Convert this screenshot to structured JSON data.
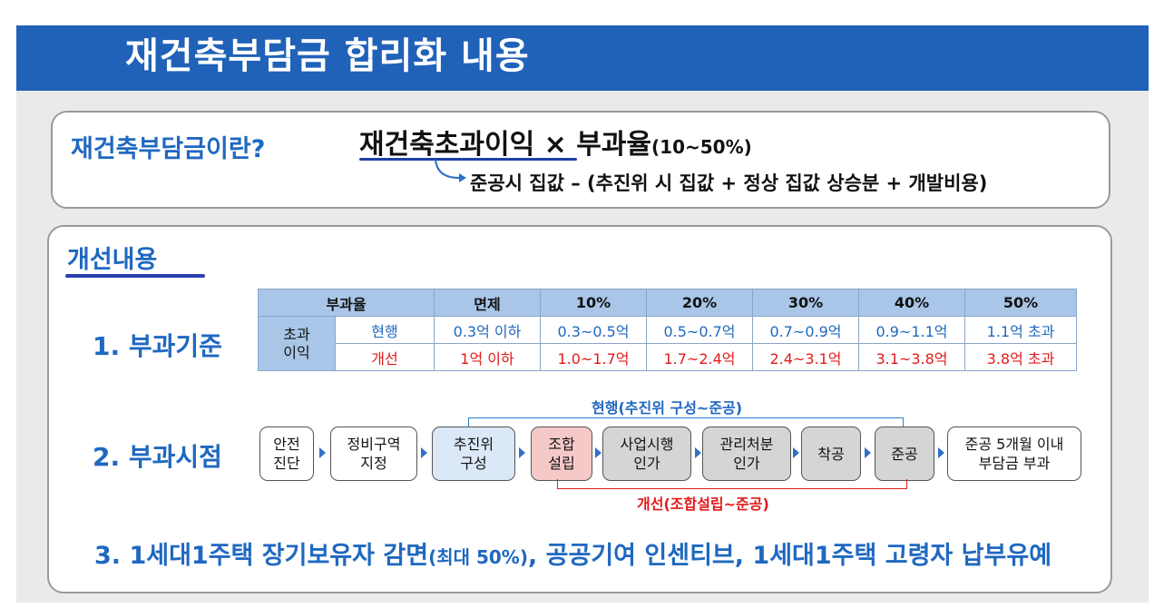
{
  "banner": {
    "title": "재건축부담금 합리화 내용"
  },
  "definition": {
    "question": "재건축부담금이란?",
    "formula_main": "재건축초과이익 × 부과율",
    "formula_range": "(10~50%)",
    "formula_detail": "준공시 집값 – (추진위 시 집값 + 정상 집값 상승분 + 개발비용)"
  },
  "improvements": {
    "title": "개선내용",
    "item1_label": "1. 부과기준",
    "item2_label": "2. 부과시점",
    "item3_main": "3. 1세대1주택 장기보유자 감면",
    "item3_small": "(최대 50%)",
    "item3_rest": ", 공공기여 인센티브, 1세대1주택 고령자 납부유예"
  },
  "rate_table": {
    "header_label": "부과율",
    "headers": [
      "면제",
      "10%",
      "20%",
      "30%",
      "40%",
      "50%"
    ],
    "row_group_label": "초과\n이익",
    "current_label": "현행",
    "current": [
      "0.3억 이하",
      "0.3~0.5억",
      "0.5~0.7억",
      "0.7~0.9억",
      "0.9~1.1억",
      "1.1억 초과"
    ],
    "improved_label": "개선",
    "improved": [
      "1억 이하",
      "1.0~1.7억",
      "1.7~2.4억",
      "2.4~3.1억",
      "3.1~3.8억",
      "3.8억 초과"
    ]
  },
  "timeline": {
    "steps": [
      "안전\n진단",
      "정비구역\n지정",
      "추진위\n구성",
      "조합\n설립",
      "사업시행\n인가",
      "관리처분\n인가",
      "착공",
      "준공",
      "준공 5개월 이내\n부담금 부과"
    ],
    "current_range": "현행(추진위 구성~준공)",
    "improved_range": "개선(조합설립~준공)"
  },
  "colors": {
    "banner": "#2062b8",
    "accent_blue": "#1f68c0",
    "accent_red": "#e21a1a",
    "table_header": "#a9c6e8"
  }
}
